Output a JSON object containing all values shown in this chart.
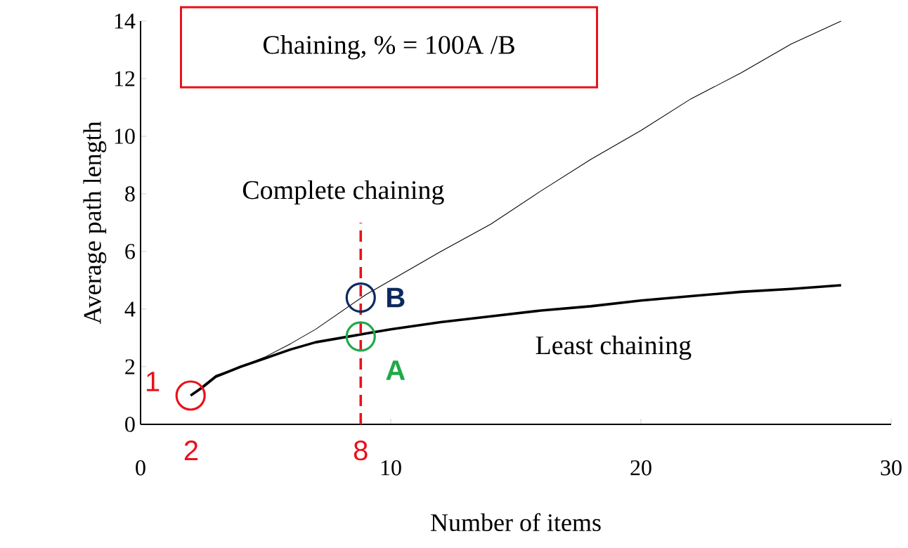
{
  "chart_data": {
    "type": "line",
    "title": "Chaining, % = 100A /B",
    "xlabel": "Number of items",
    "ylabel": "Average path length",
    "xlim": [
      0,
      30
    ],
    "xticks": [
      0,
      10,
      20,
      30
    ],
    "ylim": [
      0,
      14
    ],
    "yticks": [
      0,
      2,
      4,
      6,
      8,
      10,
      12,
      14
    ],
    "grid": false,
    "legend": "center",
    "series": [
      {
        "name": "Complete chaining",
        "color": "#000000",
        "x": [
          2,
          3,
          4,
          5,
          6,
          7,
          8,
          9,
          10,
          12,
          14,
          16,
          18,
          20,
          22,
          24,
          26,
          28
        ],
        "values": [
          1.0,
          1.7,
          2.0,
          2.35,
          2.8,
          3.3,
          3.9,
          4.5,
          5.0,
          6.0,
          6.95,
          8.1,
          9.2,
          10.2,
          11.3,
          12.2,
          13.2,
          14.0
        ]
      },
      {
        "name": "Least chaining",
        "color": "#000000",
        "x": [
          2,
          2.5,
          3,
          4,
          5,
          6,
          7,
          8,
          9,
          10,
          12,
          14,
          16,
          18,
          20,
          22,
          24,
          26,
          28
        ],
        "values": [
          1.0,
          1.3,
          1.65,
          2.0,
          2.3,
          2.6,
          2.85,
          3.0,
          3.15,
          3.3,
          3.55,
          3.75,
          3.95,
          4.1,
          4.3,
          4.45,
          4.6,
          4.7,
          4.83
        ]
      },
      {
        "name": "B",
        "type": "scatter",
        "marker": "circle",
        "color": "#0d2a5f",
        "x": [
          8.8
        ],
        "values": [
          4.4
        ]
      },
      {
        "name": "A",
        "type": "scatter",
        "marker": "circle",
        "color": "#22a84a",
        "x": [
          8.8
        ],
        "values": [
          3.05
        ]
      },
      {
        "name": "1",
        "type": "scatter",
        "marker": "circle",
        "color": "#e8121b",
        "x": [
          2
        ],
        "values": [
          1.0
        ]
      }
    ],
    "ref_lines": [
      {
        "axis": "x",
        "value": 8.8,
        "color": "#e8121b",
        "line_style": "dashed"
      }
    ],
    "annotations": [
      "2",
      "8"
    ]
  }
}
